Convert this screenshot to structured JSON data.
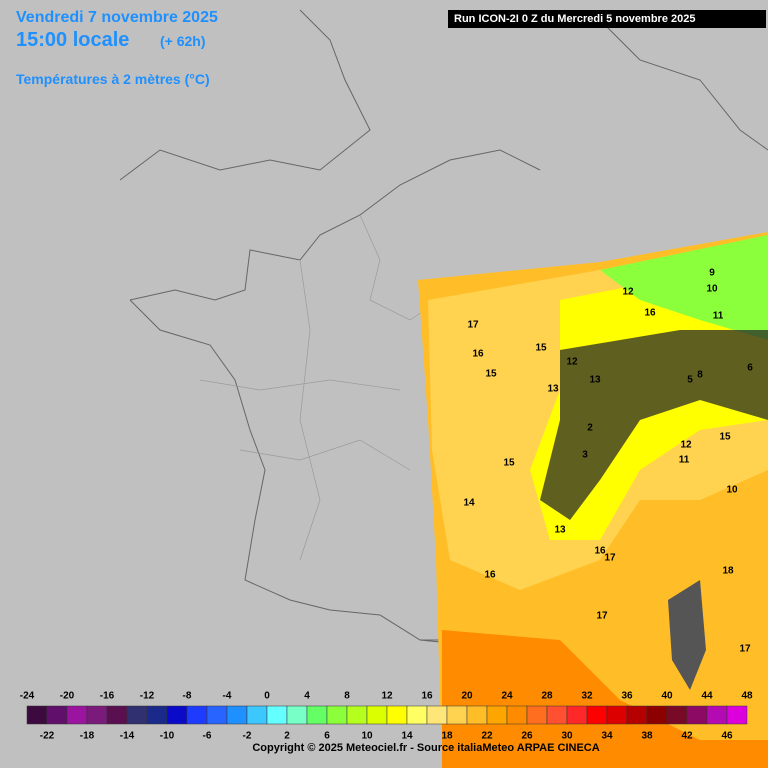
{
  "header": {
    "date": "Vendredi 7 novembre 2025",
    "time": "15:00 locale",
    "lead": "(+ 62h)",
    "variable": "Températures à 2 mètres (°C)",
    "run": "Run ICON-2I 0 Z du Mercredi 5 novembre 2025"
  },
  "map_labels": [
    "17",
    "16",
    "15",
    "15",
    "13",
    "12",
    "12",
    "10",
    "16",
    "11",
    "9",
    "6",
    "13",
    "12",
    "11",
    "10",
    "15",
    "15",
    "14",
    "13",
    "16",
    "17",
    "16",
    "18",
    "17",
    "17",
    "8",
    "5",
    "3",
    "2"
  ],
  "legend": {
    "range": [
      -24,
      48
    ],
    "ticks": [
      -24,
      -22,
      -20,
      -18,
      -16,
      -14,
      -12,
      -10,
      -8,
      -6,
      -4,
      -2,
      0,
      2,
      4,
      6,
      8,
      10,
      12,
      14,
      16,
      18,
      20,
      22,
      24,
      26,
      28,
      30,
      32,
      34,
      36,
      38,
      40,
      42,
      44,
      46,
      48
    ],
    "colors": [
      "#3d0a40",
      "#60106a",
      "#9a14a0",
      "#7a1a7a",
      "#5a1050",
      "#303070",
      "#1a2a8a",
      "#0a0ac8",
      "#1e3cff",
      "#2864ff",
      "#1e90ff",
      "#3cc8ff",
      "#64ffff",
      "#78ffc8",
      "#64ff64",
      "#8cff3c",
      "#b4ff1e",
      "#dcff00",
      "#ffff00",
      "#ffff64",
      "#ffe678",
      "#ffd250",
      "#ffbe28",
      "#ffa500",
      "#ff8c00",
      "#ff6e1e",
      "#ff5032",
      "#ff2828",
      "#ff0000",
      "#dc0000",
      "#b40000",
      "#8c0000",
      "#780a28",
      "#8c0a64",
      "#b40ab4",
      "#dc00dc"
    ]
  },
  "footer": "Copyright © 2025 Meteociel.fr - Source italiaMeteo ARPAE CINECA"
}
